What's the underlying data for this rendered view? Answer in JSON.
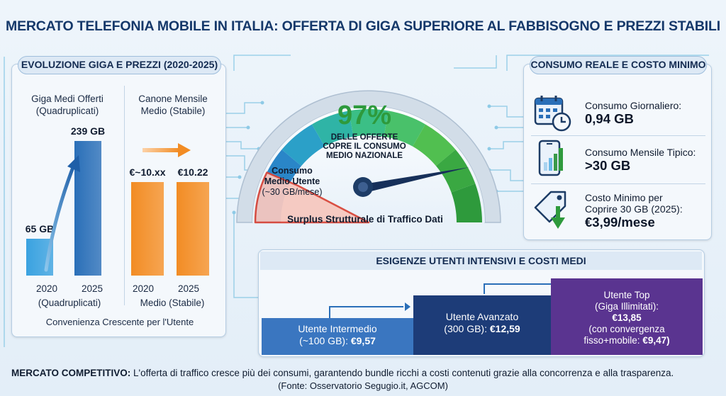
{
  "title": "MERCATO TELEFONIA MOBILE IN ITALIA: OFFERTA DI GIGA SUPERIORE AL FABBISOGNO E PREZZI STABILI",
  "left": {
    "header": "EVOLUZIONE GIGA E PREZZI (2020-2025)",
    "giga": {
      "title_line1": "Giga Medi Offerti",
      "title_line2": "(Quadruplicati)",
      "values": [
        65,
        239
      ],
      "labels": [
        "65 GB",
        "239 GB"
      ],
      "years": [
        "2020",
        "2025"
      ],
      "note": "(Quadruplicati)"
    },
    "canone": {
      "title_line1": "Canone Mensile",
      "title_line2": "Medio (Stabile)",
      "labels": [
        "€~10.xx",
        "€10.22"
      ],
      "years": [
        "2020",
        "2025"
      ],
      "note": "Medio (Stabile)"
    },
    "footer": "Convenienza Crescente per l'Utente"
  },
  "gauge": {
    "percent": "97%",
    "percent_value": 97,
    "subtitle_1": "DELLE OFFERTE",
    "subtitle_2": "COPRE IL CONSUMO",
    "subtitle_3": "MEDIO NAZIONALE",
    "consumo_line1": "Consumo",
    "consumo_line2": "Medio Utente",
    "consumo_line3": "(~30 GB/mese)",
    "surplus": "Surplus Strutturale di Traffico Dati"
  },
  "right": {
    "header": "CONSUMO REALE E COSTO MINIMO",
    "items": [
      {
        "label": "Consumo Giornaliero:",
        "value": "0,94 GB",
        "icon": "calendar-clock-icon"
      },
      {
        "label": "Consumo Mensile Tipico:",
        "value": ">30 GB",
        "icon": "smartphone-chart-icon"
      },
      {
        "label_1": "Costo Minimo per",
        "label_2": "Coprire 30 GB (2025):",
        "value": "€3,99/mese",
        "icon": "price-tag-icon"
      }
    ]
  },
  "bottom": {
    "header": "ESIGENZE UTENTI INTENSIVI E COSTI MEDI",
    "steps": [
      {
        "line1": "Utente Intermedio",
        "line2_pre": "(~100 GB): ",
        "price": "€9,57",
        "color": "#3a76c0"
      },
      {
        "line1": "Utente Avanzato",
        "line2_pre": "(300 GB): ",
        "price": "€12,59",
        "color": "#1d3c78"
      },
      {
        "line1": "Utente Top",
        "line2": "(Giga Illimitati):",
        "price": "€13,85",
        "line4": "(con convergenza",
        "line5_pre": "fisso+mobile: ",
        "price2": "€9,47)",
        "color": "#5a3490"
      }
    ]
  },
  "footer": {
    "bold": "MERCATO COMPETITIVO:",
    "text": " L'offerta di traffico cresce più dei consumi, garantendo bundle ricchi a costi contenuti grazie alla concorrenza e alla trasparenza.",
    "source": "(Fonte: Osservatorio Segugio.it, AGCOM)"
  },
  "colors": {
    "giga_bar_2020": "#3aa2e0",
    "giga_bar_2025": "#2a6fb8",
    "canone_bar": "#f28c24",
    "gauge_green": "#2e9a3c"
  }
}
